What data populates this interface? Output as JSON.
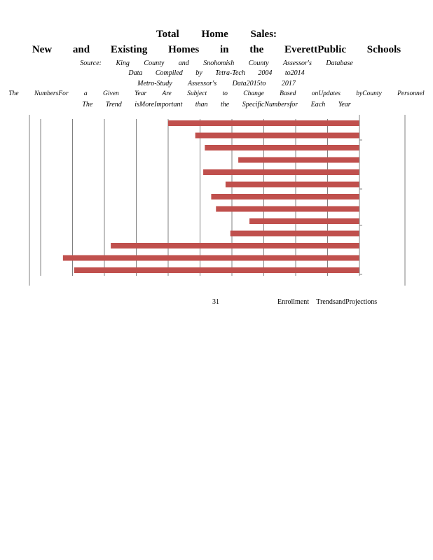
{
  "title": {
    "line1": "Total Home Sales:",
    "line2": "New and Existing Homes in the EverettPublic Schools"
  },
  "notes": [
    "Source: King County and Snohomish County Assessor's Database",
    "Data Compiled by Tetra-Tech 2004 to2014",
    "Metro-Study Assessor's Data2015to 2017",
    "The NumbersFor a Given Year Are Subject to Change Based onUpdates byCounty Personnel",
    "The Trend isMoreImportant than the SpecificNumbersfor Each Year"
  ],
  "footer": {
    "page_number": "31",
    "label": "Enrollment TrendsandProjections"
  },
  "colors": {
    "bar": "#c0504d",
    "gridline": "#808080"
  },
  "chart_data": {
    "type": "bar",
    "orientation": "horizontal",
    "bars_extend_from": "right",
    "bar_count": 14,
    "values": [
      6000,
      5150,
      4850,
      3800,
      4900,
      4200,
      4650,
      4500,
      3450,
      4050,
      7800,
      9300,
      8950,
      null
    ],
    "xlim": [
      0,
      10000
    ],
    "gridlines": true
  }
}
